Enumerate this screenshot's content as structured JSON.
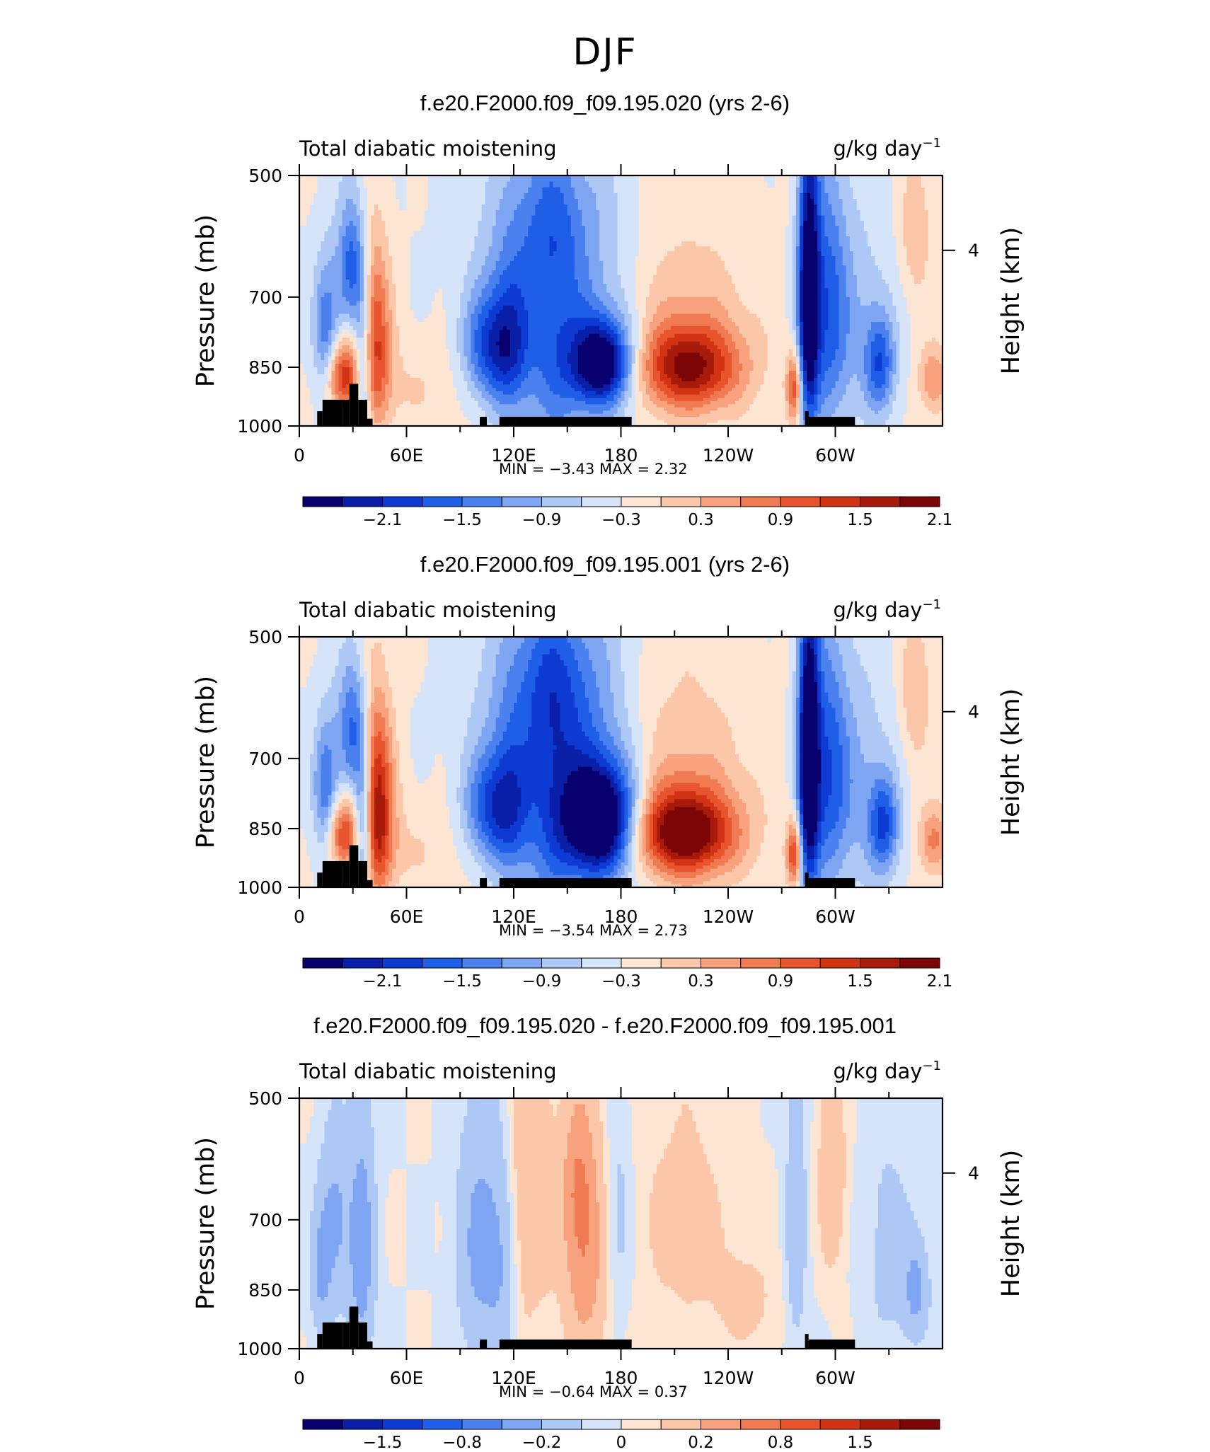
{
  "main_title": "DJF",
  "panels": [
    {
      "title": "f.e20.F2000.f09_f09.195.020 (yrs 2-6)",
      "left_label": "Total diabatic moistening",
      "units": "g/kg day",
      "units_exp": "−1",
      "ylabel": "Pressure (mb)",
      "y2label": "Height (km)",
      "minmax": "MIN =   −3.43   MAX =    2.32"
    },
    {
      "title": "f.e20.F2000.f09_f09.195.001 (yrs 2-6)",
      "left_label": "Total diabatic moistening",
      "units": "g/kg day",
      "units_exp": "−1",
      "ylabel": "Pressure (mb)",
      "y2label": "Height (km)",
      "minmax": "MIN =   −3.54   MAX =    2.73"
    },
    {
      "title": "f.e20.F2000.f09_f09.195.020 - f.e20.F2000.f09_f09.195.001",
      "left_label": "Total diabatic moistening",
      "units": "g/kg day",
      "units_exp": "−1",
      "ylabel": "Pressure (mb)",
      "y2label": "Height (km)",
      "minmax": "MIN =   −0.64   MAX =    0.37"
    }
  ],
  "chart_data": [
    {
      "type": "heatmap",
      "title": "f.e20.F2000.f09_f09.195.020 (yrs 2-6)",
      "xlabel": "",
      "ylabel": "Pressure (mb)",
      "y2label": "Height (km)",
      "x_ticks": [
        "0",
        "60E",
        "120E",
        "180",
        "120W",
        "60W"
      ],
      "x_range_deg": [
        0,
        360
      ],
      "y_ticks": [
        "500",
        "700",
        "850",
        "1000"
      ],
      "y_range": [
        1000,
        500
      ],
      "y2_ticks": [
        "4"
      ],
      "colorbar_labels": [
        "−2.1",
        "−1.5",
        "−0.9",
        "−0.3",
        "0.3",
        "0.9",
        "1.5",
        "2.1"
      ],
      "colorbar_colors": [
        "#08006e",
        "#0a1fa8",
        "#0d3ad2",
        "#1f5ee6",
        "#4a81ee",
        "#7ea5f2",
        "#aec8f5",
        "#d5e4f8",
        "#fde5d3",
        "#fbc7a8",
        "#f7a27c",
        "#f07a52",
        "#e8542e",
        "#d23314",
        "#a81b0b",
        "#7c0606"
      ],
      "min": -3.43,
      "max": 2.32
    },
    {
      "type": "heatmap",
      "title": "f.e20.F2000.f09_f09.195.001 (yrs 2-6)",
      "xlabel": "",
      "ylabel": "Pressure (mb)",
      "y2label": "Height (km)",
      "x_ticks": [
        "0",
        "60E",
        "120E",
        "180",
        "120W",
        "60W"
      ],
      "x_range_deg": [
        0,
        360
      ],
      "y_ticks": [
        "500",
        "700",
        "850",
        "1000"
      ],
      "y_range": [
        1000,
        500
      ],
      "y2_ticks": [
        "4"
      ],
      "colorbar_labels": [
        "−2.1",
        "−1.5",
        "−0.9",
        "−0.3",
        "0.3",
        "0.9",
        "1.5",
        "2.1"
      ],
      "colorbar_colors": [
        "#08006e",
        "#0a1fa8",
        "#0d3ad2",
        "#1f5ee6",
        "#4a81ee",
        "#7ea5f2",
        "#aec8f5",
        "#d5e4f8",
        "#fde5d3",
        "#fbc7a8",
        "#f7a27c",
        "#f07a52",
        "#e8542e",
        "#d23314",
        "#a81b0b",
        "#7c0606"
      ],
      "min": -3.54,
      "max": 2.73
    },
    {
      "type": "heatmap",
      "title": "f.e20.F2000.f09_f09.195.020 - f.e20.F2000.f09_f09.195.001",
      "xlabel": "",
      "ylabel": "Pressure (mb)",
      "y2label": "Height (km)",
      "x_ticks": [
        "0",
        "60E",
        "120E",
        "180",
        "120W",
        "60W"
      ],
      "x_range_deg": [
        0,
        360
      ],
      "y_ticks": [
        "500",
        "700",
        "850",
        "1000"
      ],
      "y_range": [
        1000,
        500
      ],
      "y2_ticks": [
        "4"
      ],
      "colorbar_labels": [
        "−1.5",
        "−0.8",
        "−0.2",
        "0",
        "0.2",
        "0.8",
        "1.5"
      ],
      "colorbar_colors": [
        "#08006e",
        "#0a1fa8",
        "#0d3ad2",
        "#1f5ee6",
        "#4a81ee",
        "#7ea5f2",
        "#aec8f5",
        "#d5e4f8",
        "#fde5d3",
        "#fbc7a8",
        "#f7a27c",
        "#f07a52",
        "#e8542e",
        "#d23314",
        "#a81b0b",
        "#7c0606"
      ],
      "min": -0.64,
      "max": 0.37
    }
  ]
}
